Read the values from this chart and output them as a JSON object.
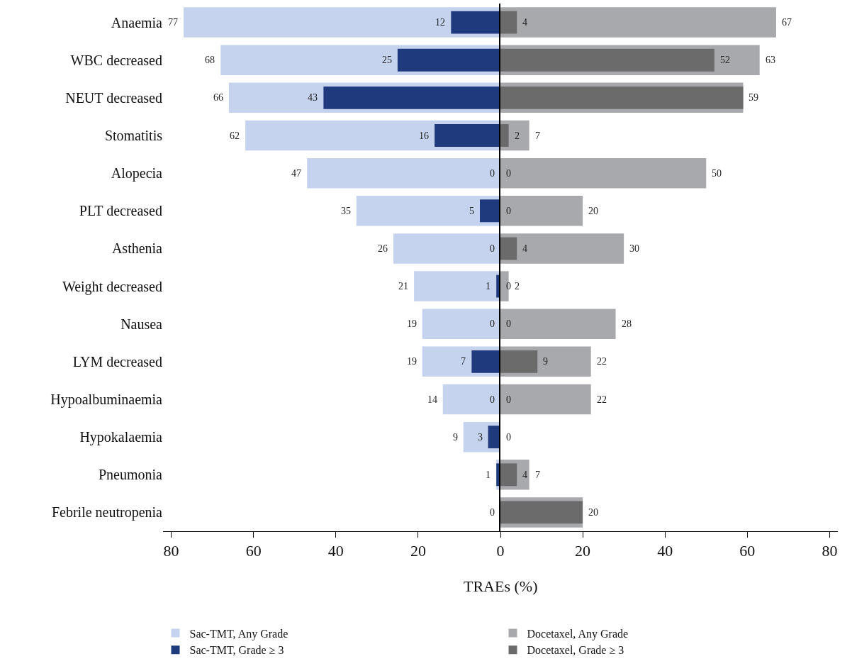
{
  "chart_data": [
    {
      "type": "bar",
      "orientation": "horizontal",
      "xlabel": "TRAEs (%)",
      "categories": [
        "Anaemia",
        "WBC decreased",
        "NEUT decreased",
        "Stomatitis",
        "Alopecia",
        "PLT decreased",
        "Asthenia",
        "Weight decreased",
        "Nausea",
        "LYM decreased",
        "Hypoalbuminaemia",
        "Hypokalaemia",
        "Pneumonia",
        "Febrile neutropenia"
      ],
      "series": [
        {
          "name": "Sac-TMT, Any Grade",
          "color": "#c5d3ee",
          "values": [
            77,
            68,
            66,
            62,
            47,
            35,
            26,
            21,
            19,
            19,
            14,
            9,
            1,
            0
          ],
          "value_labels": [
            "77",
            "68",
            "66",
            "62",
            "47",
            "35",
            "26",
            "21",
            "19",
            "19",
            "14",
            "9",
            "1",
            "0"
          ]
        },
        {
          "name": "Sac-TMT, Grade ≥ 3",
          "color": "#1f3a7d",
          "values": [
            12,
            25,
            43,
            16,
            0,
            5,
            0,
            1,
            0,
            7,
            0,
            3,
            1,
            0
          ],
          "value_labels": [
            "12",
            "25",
            "43",
            "16",
            "0",
            "5",
            "0",
            "1",
            "0",
            "7",
            "0",
            "3",
            null,
            null
          ]
        }
      ],
      "xlim": [
        82,
        0
      ],
      "xticks": [
        80,
        60,
        40,
        20
      ],
      "legend": "bottom"
    },
    {
      "type": "bar",
      "orientation": "horizontal",
      "categories": [
        "Anaemia",
        "WBC decreased",
        "NEUT decreased",
        "Stomatitis",
        "Alopecia",
        "PLT decreased",
        "Asthenia",
        "Weight decreased",
        "Nausea",
        "LYM decreased",
        "Hypoalbuminaemia",
        "Hypokalaemia",
        "Pneumonia",
        "Febrile neutropenia"
      ],
      "series": [
        {
          "name": "Docetaxel, Any Grade",
          "color": "#a7a9ac",
          "values": [
            67,
            63,
            59,
            7,
            50,
            20,
            30,
            2,
            28,
            22,
            22,
            0,
            7,
            20
          ],
          "value_labels": [
            "67",
            "63",
            "59",
            "7",
            "50",
            "20",
            "30",
            "2",
            "28",
            "22",
            "22",
            "0",
            "7",
            "20"
          ]
        },
        {
          "name": "Docetaxel, Grade ≥ 3",
          "color": "#6b6b6b",
          "values": [
            4,
            52,
            59,
            2,
            0,
            0,
            4,
            0,
            0,
            9,
            0,
            0,
            4,
            20
          ],
          "value_labels": [
            "4",
            "52",
            null,
            "2",
            "0",
            "0",
            "4",
            "0",
            "0",
            "9",
            "0",
            null,
            "4",
            null
          ]
        }
      ],
      "xlim": [
        0,
        82
      ],
      "xticks": [
        0,
        20,
        40,
        60,
        80
      ],
      "tick_labels": "x",
      "legend": "bottom"
    }
  ]
}
